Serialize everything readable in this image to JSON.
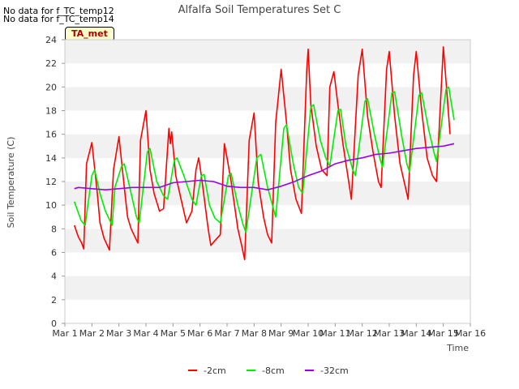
{
  "notes": [
    "No data for f_TC_temp12",
    "No data for f_TC_temp14"
  ],
  "badge": "TA_met",
  "chart_data": {
    "type": "line",
    "title": "Alfalfa Soil Temperatures Set C",
    "xlabel": "Time",
    "ylabel": "Soil Temperature (C)",
    "ylim": [
      0,
      24
    ],
    "yticks": [
      0,
      2,
      4,
      6,
      8,
      10,
      12,
      14,
      16,
      18,
      20,
      22,
      24
    ],
    "xlim": [
      1,
      16
    ],
    "xticks": [
      1,
      2,
      3,
      4,
      5,
      6,
      7,
      8,
      9,
      10,
      11,
      12,
      13,
      14,
      15,
      16
    ],
    "xticklabels": [
      "Mar 1",
      "Mar 2",
      "Mar 3",
      "Mar 4",
      "Mar 5",
      "Mar 6",
      "Mar 7",
      "Mar 8",
      "Mar 9",
      "Mar 10",
      "Mar 11",
      "Mar 12",
      "Mar 13",
      "Mar 14",
      "Mar 15",
      "Mar 16"
    ],
    "grid": "horizontal alternating bands",
    "legend_position": "bottom-center",
    "series": [
      {
        "name": "-2cm",
        "color": "#ff0000",
        "x": [
          1.35,
          1.5,
          1.62,
          1.7,
          1.8,
          2.0,
          2.2,
          2.3,
          2.45,
          2.65,
          2.8,
          3.0,
          3.2,
          3.32,
          3.45,
          3.7,
          3.8,
          4.0,
          4.15,
          4.3,
          4.5,
          4.65,
          4.85,
          4.9,
          4.95,
          5.1,
          5.3,
          5.5,
          5.7,
          5.85,
          5.95,
          6.05,
          6.3,
          6.4,
          6.55,
          6.75,
          6.9,
          7.0,
          7.15,
          7.4,
          7.55,
          7.65,
          7.82,
          8.0,
          8.15,
          8.35,
          8.5,
          8.65,
          8.8,
          9.0,
          9.2,
          9.35,
          9.55,
          9.75,
          9.95,
          10.0,
          10.1,
          10.3,
          10.5,
          10.7,
          10.8,
          10.95,
          11.1,
          11.3,
          11.5,
          11.6,
          11.85,
          12.0,
          12.2,
          12.4,
          12.6,
          12.7,
          12.9,
          13.0,
          13.2,
          13.4,
          13.6,
          13.7,
          13.9,
          14.0,
          14.2,
          14.4,
          14.6,
          14.75,
          14.88,
          15.0,
          15.1,
          15.25
        ],
        "values": [
          8.3,
          7.3,
          6.8,
          6.3,
          13.5,
          15.3,
          11.0,
          8.5,
          7.2,
          6.2,
          13.0,
          15.8,
          11.5,
          9.0,
          8.0,
          6.8,
          15.5,
          18.0,
          13.0,
          11.0,
          9.5,
          9.7,
          16.5,
          15.2,
          16.2,
          12.5,
          10.5,
          8.5,
          9.5,
          13.0,
          14.0,
          12.5,
          8.0,
          6.6,
          7.0,
          7.5,
          15.2,
          14.0,
          12.0,
          8.0,
          6.5,
          5.4,
          15.5,
          17.8,
          12.0,
          9.0,
          7.5,
          6.8,
          17.0,
          21.5,
          17.0,
          13.0,
          10.5,
          9.3,
          21.5,
          23.2,
          18.5,
          15.0,
          13.0,
          12.5,
          20.0,
          21.3,
          18.5,
          15.0,
          12.0,
          10.5,
          21.0,
          23.2,
          17.5,
          14.5,
          12.0,
          11.5,
          21.5,
          23.0,
          17.5,
          13.5,
          11.5,
          10.5,
          21.0,
          23.0,
          18.0,
          14.0,
          12.5,
          12.0,
          18.0,
          23.4,
          20.5,
          16.0
        ]
      },
      {
        "name": "-8cm",
        "color": "#00ee00",
        "x": [
          1.35,
          1.6,
          1.75,
          2.0,
          2.1,
          2.3,
          2.5,
          2.75,
          2.85,
          3.1,
          3.2,
          3.45,
          3.65,
          3.75,
          4.05,
          4.15,
          4.4,
          4.65,
          4.8,
          5.05,
          5.15,
          5.4,
          5.7,
          5.85,
          6.05,
          6.15,
          6.35,
          6.55,
          6.75,
          7.05,
          7.15,
          7.4,
          7.6,
          7.7,
          8.1,
          8.25,
          8.5,
          8.8,
          9.1,
          9.2,
          9.45,
          9.65,
          9.8,
          10.1,
          10.2,
          10.45,
          10.65,
          10.8,
          11.1,
          11.2,
          11.4,
          11.65,
          11.75,
          12.1,
          12.2,
          12.45,
          12.65,
          12.75,
          13.1,
          13.2,
          13.45,
          13.65,
          13.75,
          14.1,
          14.2,
          14.45,
          14.65,
          14.75,
          15.1,
          15.2,
          15.4
        ],
        "values": [
          10.3,
          8.7,
          8.3,
          12.5,
          13.0,
          11.0,
          9.5,
          8.3,
          11.5,
          13.3,
          13.5,
          11.0,
          9.0,
          8.5,
          14.5,
          14.8,
          12.0,
          10.8,
          10.5,
          13.8,
          14.0,
          12.5,
          10.5,
          10.0,
          12.5,
          12.6,
          10.0,
          8.9,
          8.5,
          12.5,
          12.7,
          10.0,
          8.3,
          7.7,
          14.0,
          14.3,
          11.5,
          9.0,
          16.5,
          16.8,
          13.5,
          11.5,
          11.0,
          18.3,
          18.5,
          15.5,
          14.0,
          13.3,
          18.0,
          18.1,
          15.0,
          13.0,
          12.5,
          18.8,
          19.0,
          16.0,
          14.0,
          13.2,
          19.5,
          19.6,
          16.0,
          13.5,
          12.8,
          19.3,
          19.5,
          16.5,
          14.5,
          13.7,
          19.8,
          20.0,
          17.2
        ]
      },
      {
        "name": "-32cm",
        "color": "#9900ee",
        "x": [
          1.35,
          1.5,
          2.0,
          2.5,
          3.0,
          3.5,
          4.0,
          4.5,
          5.0,
          5.5,
          6.0,
          6.5,
          7.0,
          7.5,
          8.0,
          8.5,
          9.0,
          9.5,
          10.0,
          10.5,
          11.0,
          11.5,
          12.0,
          12.5,
          13.0,
          13.5,
          14.0,
          14.5,
          15.0,
          15.4
        ],
        "values": [
          11.4,
          11.5,
          11.4,
          11.3,
          11.4,
          11.5,
          11.5,
          11.5,
          11.9,
          12.0,
          12.1,
          12.0,
          11.6,
          11.5,
          11.5,
          11.3,
          11.6,
          12.0,
          12.5,
          12.9,
          13.5,
          13.8,
          14.0,
          14.3,
          14.4,
          14.6,
          14.8,
          14.9,
          15.0,
          15.2
        ]
      }
    ]
  }
}
